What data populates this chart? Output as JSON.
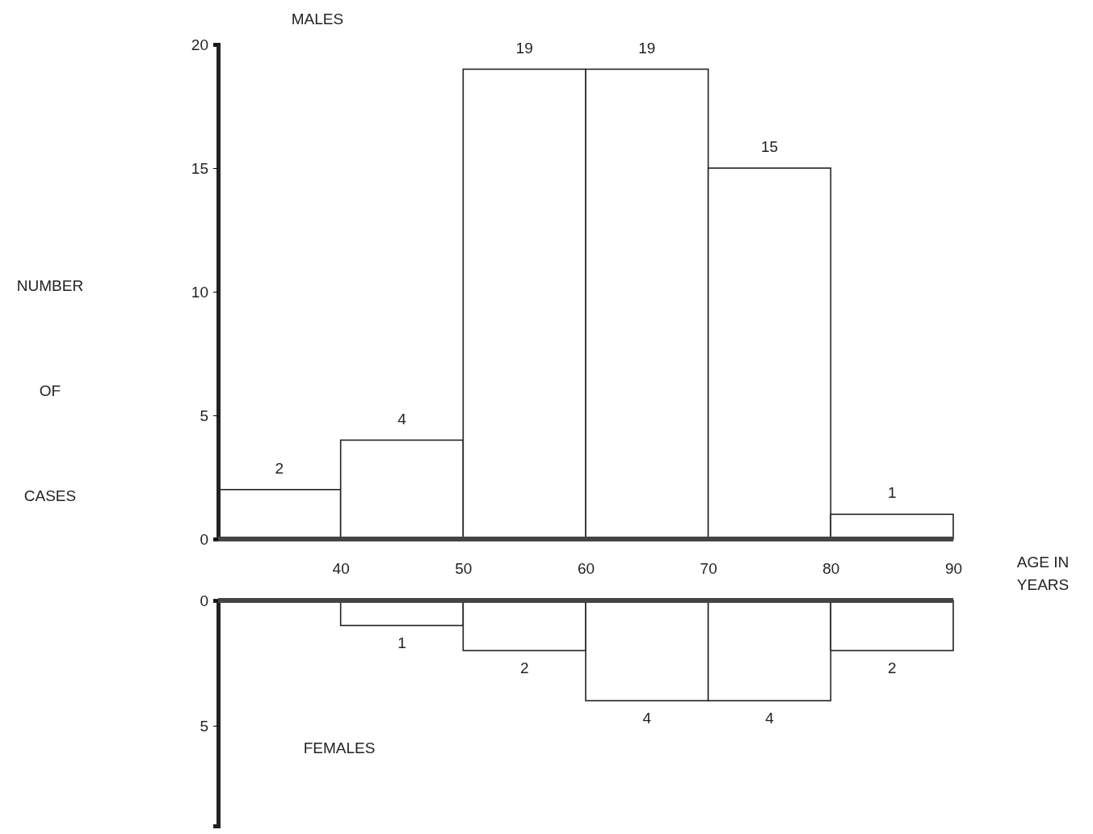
{
  "chart_data": [
    {
      "type": "histogram",
      "title": "MALES",
      "ylabel": "NUMBER OF CASES",
      "xlabel": "AGE IN YEARS",
      "bins": [
        30,
        40,
        50,
        60,
        70,
        80,
        90
      ],
      "values": [
        2,
        4,
        19,
        19,
        15,
        1
      ],
      "xlim": [
        30,
        90
      ],
      "xticks": [
        40,
        50,
        60,
        70,
        80,
        90
      ],
      "ylim": [
        0,
        20
      ],
      "yticks": [
        0,
        5,
        10,
        15,
        20
      ],
      "data_labels": true
    },
    {
      "type": "histogram",
      "title": "FEMALES",
      "bins": [
        30,
        40,
        50,
        60,
        70,
        80,
        90
      ],
      "values": [
        0,
        1,
        2,
        4,
        4,
        2
      ],
      "value_labels": [
        null,
        "1",
        "2",
        "4",
        "4",
        "2"
      ],
      "xlim": [
        30,
        90
      ],
      "ylim": [
        9,
        0
      ],
      "yticks": [
        0,
        5
      ],
      "tick_labels": "y"
    }
  ]
}
